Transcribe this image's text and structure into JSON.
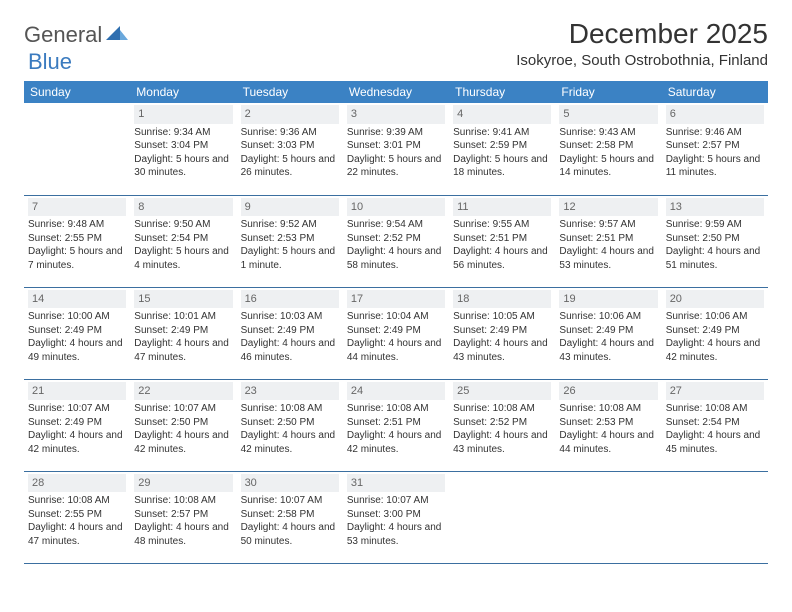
{
  "logo": {
    "text1": "General",
    "text2": "Blue"
  },
  "title": "December 2025",
  "location": "Isokyroe, South Ostrobothnia, Finland",
  "colors": {
    "header_bg": "#3b82c4",
    "header_text": "#ffffff",
    "daynum_bg": "#eef0f2",
    "daynum_text": "#666666",
    "row_border": "#3b6fa0",
    "logo_gray": "#555555",
    "logo_blue": "#3b7bbf"
  },
  "weekdays": [
    "Sunday",
    "Monday",
    "Tuesday",
    "Wednesday",
    "Thursday",
    "Friday",
    "Saturday"
  ],
  "first_weekday_index": 1,
  "days": [
    {
      "n": 1,
      "sunrise": "9:34 AM",
      "sunset": "3:04 PM",
      "daylight": "5 hours and 30 minutes."
    },
    {
      "n": 2,
      "sunrise": "9:36 AM",
      "sunset": "3:03 PM",
      "daylight": "5 hours and 26 minutes."
    },
    {
      "n": 3,
      "sunrise": "9:39 AM",
      "sunset": "3:01 PM",
      "daylight": "5 hours and 22 minutes."
    },
    {
      "n": 4,
      "sunrise": "9:41 AM",
      "sunset": "2:59 PM",
      "daylight": "5 hours and 18 minutes."
    },
    {
      "n": 5,
      "sunrise": "9:43 AM",
      "sunset": "2:58 PM",
      "daylight": "5 hours and 14 minutes."
    },
    {
      "n": 6,
      "sunrise": "9:46 AM",
      "sunset": "2:57 PM",
      "daylight": "5 hours and 11 minutes."
    },
    {
      "n": 7,
      "sunrise": "9:48 AM",
      "sunset": "2:55 PM",
      "daylight": "5 hours and 7 minutes."
    },
    {
      "n": 8,
      "sunrise": "9:50 AM",
      "sunset": "2:54 PM",
      "daylight": "5 hours and 4 minutes."
    },
    {
      "n": 9,
      "sunrise": "9:52 AM",
      "sunset": "2:53 PM",
      "daylight": "5 hours and 1 minute."
    },
    {
      "n": 10,
      "sunrise": "9:54 AM",
      "sunset": "2:52 PM",
      "daylight": "4 hours and 58 minutes."
    },
    {
      "n": 11,
      "sunrise": "9:55 AM",
      "sunset": "2:51 PM",
      "daylight": "4 hours and 56 minutes."
    },
    {
      "n": 12,
      "sunrise": "9:57 AM",
      "sunset": "2:51 PM",
      "daylight": "4 hours and 53 minutes."
    },
    {
      "n": 13,
      "sunrise": "9:59 AM",
      "sunset": "2:50 PM",
      "daylight": "4 hours and 51 minutes."
    },
    {
      "n": 14,
      "sunrise": "10:00 AM",
      "sunset": "2:49 PM",
      "daylight": "4 hours and 49 minutes."
    },
    {
      "n": 15,
      "sunrise": "10:01 AM",
      "sunset": "2:49 PM",
      "daylight": "4 hours and 47 minutes."
    },
    {
      "n": 16,
      "sunrise": "10:03 AM",
      "sunset": "2:49 PM",
      "daylight": "4 hours and 46 minutes."
    },
    {
      "n": 17,
      "sunrise": "10:04 AM",
      "sunset": "2:49 PM",
      "daylight": "4 hours and 44 minutes."
    },
    {
      "n": 18,
      "sunrise": "10:05 AM",
      "sunset": "2:49 PM",
      "daylight": "4 hours and 43 minutes."
    },
    {
      "n": 19,
      "sunrise": "10:06 AM",
      "sunset": "2:49 PM",
      "daylight": "4 hours and 43 minutes."
    },
    {
      "n": 20,
      "sunrise": "10:06 AM",
      "sunset": "2:49 PM",
      "daylight": "4 hours and 42 minutes."
    },
    {
      "n": 21,
      "sunrise": "10:07 AM",
      "sunset": "2:49 PM",
      "daylight": "4 hours and 42 minutes."
    },
    {
      "n": 22,
      "sunrise": "10:07 AM",
      "sunset": "2:50 PM",
      "daylight": "4 hours and 42 minutes."
    },
    {
      "n": 23,
      "sunrise": "10:08 AM",
      "sunset": "2:50 PM",
      "daylight": "4 hours and 42 minutes."
    },
    {
      "n": 24,
      "sunrise": "10:08 AM",
      "sunset": "2:51 PM",
      "daylight": "4 hours and 42 minutes."
    },
    {
      "n": 25,
      "sunrise": "10:08 AM",
      "sunset": "2:52 PM",
      "daylight": "4 hours and 43 minutes."
    },
    {
      "n": 26,
      "sunrise": "10:08 AM",
      "sunset": "2:53 PM",
      "daylight": "4 hours and 44 minutes."
    },
    {
      "n": 27,
      "sunrise": "10:08 AM",
      "sunset": "2:54 PM",
      "daylight": "4 hours and 45 minutes."
    },
    {
      "n": 28,
      "sunrise": "10:08 AM",
      "sunset": "2:55 PM",
      "daylight": "4 hours and 47 minutes."
    },
    {
      "n": 29,
      "sunrise": "10:08 AM",
      "sunset": "2:57 PM",
      "daylight": "4 hours and 48 minutes."
    },
    {
      "n": 30,
      "sunrise": "10:07 AM",
      "sunset": "2:58 PM",
      "daylight": "4 hours and 50 minutes."
    },
    {
      "n": 31,
      "sunrise": "10:07 AM",
      "sunset": "3:00 PM",
      "daylight": "4 hours and 53 minutes."
    }
  ],
  "labels": {
    "sunrise": "Sunrise:",
    "sunset": "Sunset:",
    "daylight": "Daylight:"
  }
}
